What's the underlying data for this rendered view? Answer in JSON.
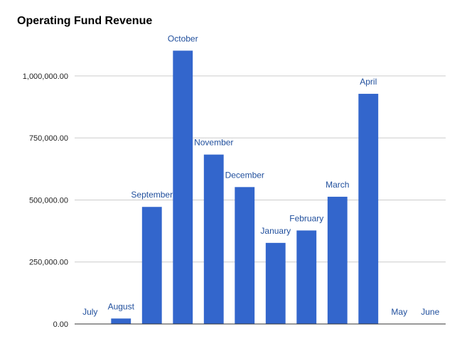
{
  "chart_data": {
    "type": "bar",
    "title": "Operating Fund Revenue",
    "xlabel": "",
    "ylabel": "",
    "categories": [
      "July",
      "August",
      "September",
      "October",
      "November",
      "December",
      "January",
      "February",
      "March",
      "April",
      "May",
      "June"
    ],
    "values": [
      0,
      22000,
      472000,
      1102000,
      683000,
      552000,
      327000,
      377000,
      513000,
      928000,
      0,
      0
    ],
    "data_labels": [
      "July",
      "August",
      "September",
      "October",
      "November",
      "December",
      "January",
      "February",
      "March",
      "April",
      "May",
      "June"
    ],
    "ylim": [
      0,
      1100000
    ],
    "yticks": [
      0,
      250000,
      500000,
      750000,
      1000000
    ],
    "ytick_labels": [
      "0.00",
      "250,000.00",
      "500,000.00",
      "750,000.00",
      "1,000,000.00"
    ],
    "grid": true,
    "legend": "none",
    "bar_color": "#3366cc",
    "label_color": "#1f4e9c",
    "grid_color": "#cccccc",
    "axis_color": "#333333"
  }
}
